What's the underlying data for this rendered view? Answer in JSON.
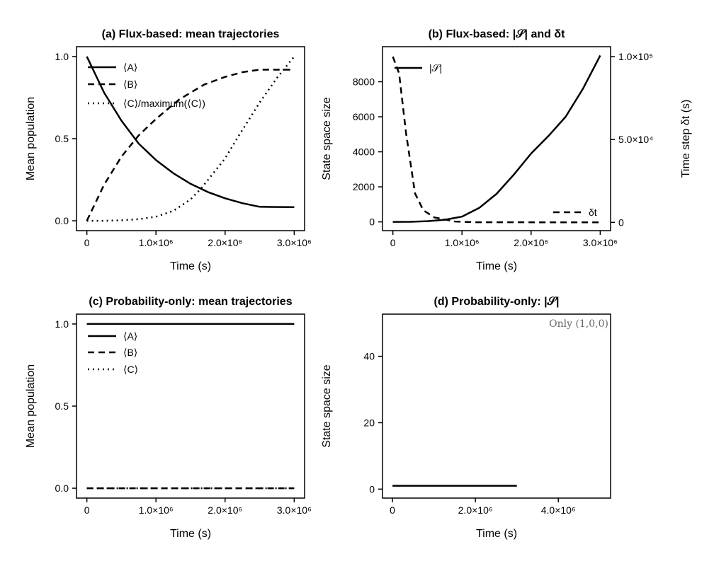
{
  "chart_data": [
    {
      "type": "line",
      "title": "(a) Flux-based: mean trajectories",
      "xlabel": "Time (s)",
      "ylabel": "Mean population",
      "xlim": [
        -150000.0,
        3150000.0
      ],
      "ylim": [
        -0.06,
        1.06
      ],
      "xticks": [
        0,
        1000000,
        2000000,
        3000000
      ],
      "xtick_labels": [
        "0",
        "1.0×10⁶",
        "2.0×10⁶",
        "3.0×10⁶"
      ],
      "yticks": [
        0,
        0.5,
        1
      ],
      "ytick_labels": [
        "0.0",
        "0.5",
        "1.0"
      ],
      "grid": false,
      "legend": "top-left",
      "series": [
        {
          "name": "⟨A⟩",
          "style": "solid",
          "x": [
            0,
            250000,
            500000,
            750000,
            1000000,
            1250000,
            1500000,
            1750000,
            2000000,
            2250000,
            2500000,
            3000000
          ],
          "y": [
            1.0,
            0.78,
            0.61,
            0.47,
            0.37,
            0.29,
            0.225,
            0.175,
            0.137,
            0.107,
            0.085,
            0.083
          ]
        },
        {
          "name": "⟨B⟩",
          "style": "dashed",
          "x": [
            0,
            250000,
            500000,
            750000,
            1000000,
            1340000,
            1700000,
            2000000,
            2250000,
            2500000,
            3000000
          ],
          "y": [
            0.0,
            0.22,
            0.39,
            0.52,
            0.62,
            0.74,
            0.83,
            0.876,
            0.905,
            0.92,
            0.92
          ]
        },
        {
          "name": "⟨C⟩/maximum(⟨C⟩)",
          "style": "dotted",
          "x": [
            0,
            250000,
            500000,
            750000,
            1000000,
            1250000,
            1500000,
            1660000,
            2000000,
            2200000,
            2500000,
            2750000,
            3000000
          ],
          "y": [
            0.0,
            0.0,
            0.003,
            0.01,
            0.025,
            0.06,
            0.13,
            0.2,
            0.38,
            0.52,
            0.72,
            0.87,
            1.0
          ]
        }
      ]
    },
    {
      "type": "line",
      "title": "(b) Flux-based: |𝒮| and δt",
      "xlabel": "Time (s)",
      "ylabel": "State space size",
      "ylabel_right": "Time step δt (s)",
      "xlim": [
        -150000.0,
        3150000.0
      ],
      "ylim": [
        -500,
        10000
      ],
      "ylim_right": [
        -5000,
        106000
      ],
      "xticks": [
        0,
        1000000,
        2000000,
        3000000
      ],
      "xtick_labels": [
        "0",
        "1.0×10⁶",
        "2.0×10⁶",
        "3.0×10⁶"
      ],
      "yticks": [
        0,
        2000,
        4000,
        6000,
        8000
      ],
      "ytick_labels": [
        "0",
        "2000",
        "4000",
        "6000",
        "8000"
      ],
      "yticks_right": [
        0,
        50000,
        100000
      ],
      "ytick_labels_right": [
        "0",
        "5.0×10⁴",
        "1.0×10⁵"
      ],
      "grid": false,
      "series": [
        {
          "name": "|𝒮|",
          "style": "solid",
          "axis": "left",
          "legend": "top-left",
          "x": [
            0,
            250000,
            500000,
            750000,
            1000000,
            1250000,
            1500000,
            1750000,
            2000000,
            2250000,
            2500000,
            2750000,
            3000000
          ],
          "y": [
            1,
            5,
            40,
            120,
            300,
            800,
            1600,
            2700,
            3900,
            4900,
            6000,
            7600,
            9500
          ]
        },
        {
          "name": "δt",
          "style": "dashed",
          "axis": "right",
          "legend": "bottom-right",
          "x": [
            0,
            90000,
            190000,
            320000,
            440000,
            600000,
            900000,
            1200000,
            3000000
          ],
          "y": [
            100000,
            90000,
            54000,
            17500,
            7300,
            3000,
            500,
            100,
            0
          ]
        }
      ]
    },
    {
      "type": "line",
      "title": "(c) Probability-only: mean trajectories",
      "xlabel": "Time (s)",
      "ylabel": "Mean population",
      "xlim": [
        -150000.0,
        3150000.0
      ],
      "ylim": [
        -0.06,
        1.06
      ],
      "xticks": [
        0,
        1000000,
        2000000,
        3000000
      ],
      "xtick_labels": [
        "0",
        "1.0×10⁶",
        "2.0×10⁶",
        "3.0×10⁶"
      ],
      "yticks": [
        0,
        0.5,
        1
      ],
      "ytick_labels": [
        "0.0",
        "0.5",
        "1.0"
      ],
      "grid": false,
      "legend": "top-left",
      "series": [
        {
          "name": "⟨A⟩",
          "style": "solid",
          "x": [
            0,
            3000000
          ],
          "y": [
            1,
            1
          ]
        },
        {
          "name": "⟨B⟩",
          "style": "dashed",
          "x": [
            0,
            3000000
          ],
          "y": [
            0,
            0
          ]
        },
        {
          "name": "⟨C⟩",
          "style": "dotted",
          "x": [
            0,
            3000000
          ],
          "y": [
            0,
            0
          ]
        }
      ]
    },
    {
      "type": "line",
      "title": "(d) Probability-only: |𝒮|",
      "xlabel": "Time (s)",
      "ylabel": "State space size",
      "xlim": [
        -240000.0,
        5260000.0
      ],
      "ylim": [
        -2.7,
        52.7
      ],
      "xticks": [
        0,
        2000000,
        4000000
      ],
      "xtick_labels": [
        "0",
        "2.0×10⁶",
        "4.0×10⁶"
      ],
      "yticks": [
        0,
        20,
        40
      ],
      "ytick_labels": [
        "0",
        "20",
        "40"
      ],
      "grid": false,
      "annotation": "Only (1,0,0)",
      "series": [
        {
          "style": "solid",
          "x": [
            0,
            3000000
          ],
          "y": [
            1,
            1
          ]
        }
      ]
    }
  ]
}
